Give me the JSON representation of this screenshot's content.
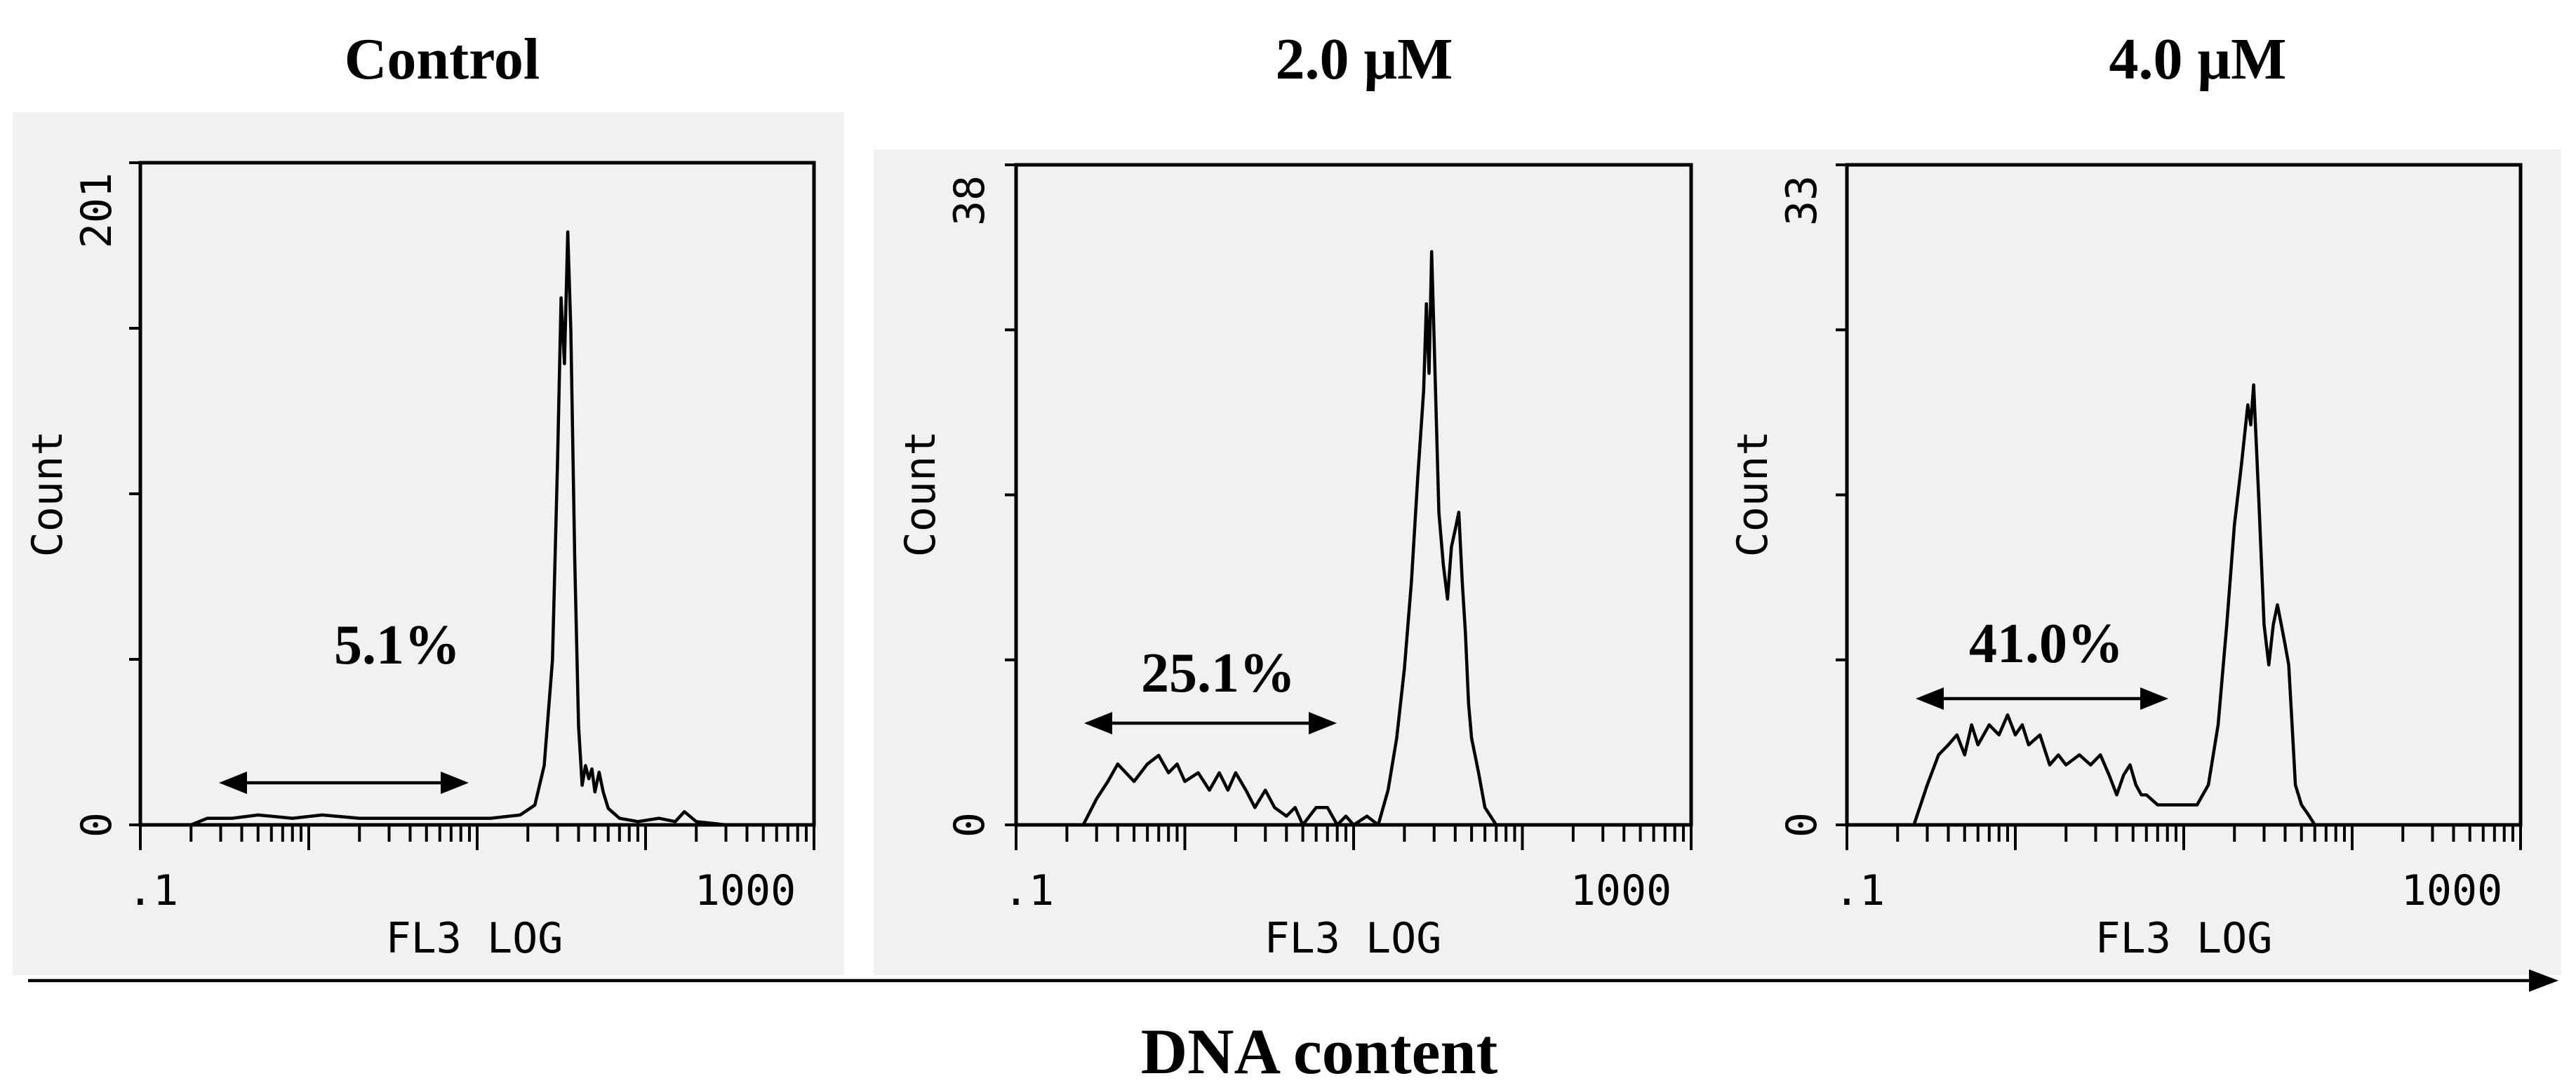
{
  "figure": {
    "x_axis_label": "DNA content"
  },
  "chart_data": [
    {
      "type": "area",
      "title": "Control",
      "xlabel": "FL3 LOG",
      "ylabel": "Count",
      "x_scale": "log",
      "xlim": [
        0.1,
        1000
      ],
      "ylim": [
        0,
        201
      ],
      "x_tick_labels": [
        ".1",
        "1000"
      ],
      "y_tick_labels": [
        "0",
        "201"
      ],
      "annotation": "5.1%",
      "annotation_range": [
        0.25,
        12
      ],
      "points": [
        [
          0.1,
          0
        ],
        [
          0.2,
          0
        ],
        [
          0.25,
          2
        ],
        [
          0.35,
          2
        ],
        [
          0.5,
          3
        ],
        [
          0.8,
          2
        ],
        [
          1.2,
          3
        ],
        [
          2,
          2
        ],
        [
          3,
          2
        ],
        [
          5,
          2
        ],
        [
          8,
          2
        ],
        [
          12,
          2
        ],
        [
          18,
          3
        ],
        [
          22,
          6
        ],
        [
          25,
          18
        ],
        [
          28,
          50
        ],
        [
          30,
          110
        ],
        [
          31.5,
          160
        ],
        [
          33,
          140
        ],
        [
          34.5,
          180
        ],
        [
          36,
          150
        ],
        [
          38,
          80
        ],
        [
          40,
          30
        ],
        [
          42,
          12
        ],
        [
          44,
          18
        ],
        [
          46,
          14
        ],
        [
          48,
          17
        ],
        [
          50,
          10
        ],
        [
          53,
          16
        ],
        [
          56,
          10
        ],
        [
          60,
          5
        ],
        [
          70,
          2
        ],
        [
          90,
          1
        ],
        [
          120,
          2
        ],
        [
          150,
          1
        ],
        [
          170,
          4
        ],
        [
          200,
          1
        ],
        [
          300,
          0
        ],
        [
          1000,
          0
        ]
      ],
      "grid": false
    },
    {
      "type": "area",
      "title": "2.0 μM",
      "xlabel": "FL3 LOG",
      "ylabel": "Count",
      "x_scale": "log",
      "xlim": [
        0.1,
        1000
      ],
      "ylim": [
        0,
        38
      ],
      "x_tick_labels": [
        ".1",
        "1000"
      ],
      "y_tick_labels": [
        "0",
        "38"
      ],
      "annotation": "25.1%",
      "annotation_range": [
        0.2,
        7
      ],
      "points": [
        [
          0.1,
          0
        ],
        [
          0.25,
          0
        ],
        [
          0.3,
          1.5
        ],
        [
          0.35,
          2.5
        ],
        [
          0.4,
          3.5
        ],
        [
          0.5,
          2.5
        ],
        [
          0.6,
          3.5
        ],
        [
          0.7,
          4
        ],
        [
          0.8,
          3
        ],
        [
          0.9,
          3.5
        ],
        [
          1.0,
          2.5
        ],
        [
          1.2,
          3
        ],
        [
          1.4,
          2
        ],
        [
          1.6,
          3
        ],
        [
          1.8,
          2
        ],
        [
          2.0,
          3
        ],
        [
          2.3,
          2
        ],
        [
          2.6,
          1
        ],
        [
          3,
          2
        ],
        [
          3.4,
          1
        ],
        [
          4,
          0.5
        ],
        [
          4.5,
          1
        ],
        [
          5,
          0
        ],
        [
          6,
          1
        ],
        [
          7,
          1
        ],
        [
          8,
          0
        ],
        [
          9,
          0.5
        ],
        [
          10,
          0
        ],
        [
          12,
          0.5
        ],
        [
          14,
          0
        ],
        [
          16,
          2
        ],
        [
          18,
          5
        ],
        [
          20,
          9
        ],
        [
          22,
          14
        ],
        [
          24,
          20
        ],
        [
          26,
          25
        ],
        [
          27,
          30
        ],
        [
          28,
          26
        ],
        [
          29,
          33
        ],
        [
          30,
          28
        ],
        [
          32,
          18
        ],
        [
          34,
          15
        ],
        [
          36,
          13
        ],
        [
          38,
          16
        ],
        [
          40,
          17
        ],
        [
          42,
          18
        ],
        [
          44,
          14
        ],
        [
          46,
          11
        ],
        [
          48,
          7
        ],
        [
          50,
          5
        ],
        [
          55,
          3
        ],
        [
          60,
          1
        ],
        [
          70,
          0
        ],
        [
          1000,
          0
        ]
      ],
      "grid": false
    },
    {
      "type": "area",
      "title": "4.0 μM",
      "xlabel": "FL3 LOG",
      "ylabel": "Count",
      "x_scale": "log",
      "xlim": [
        0.1,
        1000
      ],
      "ylim": [
        0,
        33
      ],
      "x_tick_labels": [
        ".1",
        "1000"
      ],
      "y_tick_labels": [
        "0",
        "33"
      ],
      "annotation": "41.0%",
      "annotation_range": [
        0.2,
        7
      ],
      "points": [
        [
          0.1,
          0
        ],
        [
          0.25,
          0
        ],
        [
          0.3,
          2
        ],
        [
          0.35,
          3.5
        ],
        [
          0.4,
          4
        ],
        [
          0.45,
          4.5
        ],
        [
          0.5,
          3.5
        ],
        [
          0.55,
          5
        ],
        [
          0.6,
          4
        ],
        [
          0.7,
          5
        ],
        [
          0.8,
          4.5
        ],
        [
          0.9,
          5.5
        ],
        [
          1.0,
          4.5
        ],
        [
          1.1,
          5
        ],
        [
          1.2,
          4
        ],
        [
          1.4,
          4.5
        ],
        [
          1.6,
          3
        ],
        [
          1.8,
          3.5
        ],
        [
          2.0,
          3
        ],
        [
          2.4,
          3.5
        ],
        [
          2.8,
          3
        ],
        [
          3.2,
          3.5
        ],
        [
          3.6,
          2.5
        ],
        [
          4,
          1.5
        ],
        [
          4.4,
          2.5
        ],
        [
          4.8,
          3
        ],
        [
          5.2,
          2
        ],
        [
          5.6,
          1.5
        ],
        [
          6,
          1.5
        ],
        [
          7,
          1
        ],
        [
          8,
          1
        ],
        [
          10,
          1
        ],
        [
          12,
          1
        ],
        [
          14,
          2
        ],
        [
          16,
          5
        ],
        [
          18,
          10
        ],
        [
          20,
          15
        ],
        [
          22,
          18
        ],
        [
          24,
          21
        ],
        [
          25,
          20
        ],
        [
          26,
          22
        ],
        [
          28,
          16
        ],
        [
          30,
          10
        ],
        [
          32,
          8
        ],
        [
          34,
          10
        ],
        [
          36,
          11
        ],
        [
          38,
          10
        ],
        [
          40,
          9
        ],
        [
          42,
          8
        ],
        [
          44,
          5
        ],
        [
          46,
          2
        ],
        [
          50,
          1
        ],
        [
          55,
          0.5
        ],
        [
          60,
          0
        ],
        [
          1000,
          0
        ]
      ],
      "grid": false
    }
  ]
}
